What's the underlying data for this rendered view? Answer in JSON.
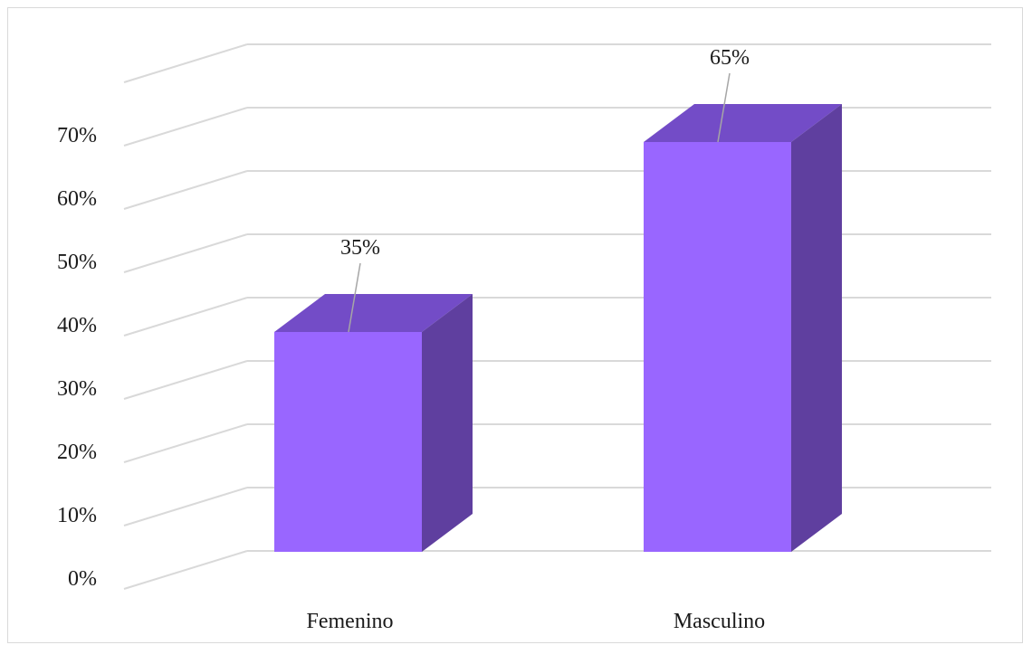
{
  "chart_data": {
    "type": "bar",
    "three_d": true,
    "categories": [
      "Femenino",
      "Masculino"
    ],
    "values": [
      35,
      65
    ],
    "data_labels": [
      "35%",
      "65%"
    ],
    "yticks": [
      0,
      10,
      20,
      30,
      40,
      50,
      60,
      70
    ],
    "ytick_labels": [
      "0%",
      "10%",
      "20%",
      "30%",
      "40%",
      "50%",
      "60%",
      "70%"
    ],
    "ylim": [
      0,
      70
    ],
    "grid": true,
    "legend": "none",
    "title": "",
    "xlabel": "",
    "ylabel": "",
    "colors": {
      "bar_front": "#9966ff",
      "bar_top": "#734cc7",
      "bar_side": "#5f3f9f",
      "grid": "#d9d9d9",
      "leader_line": "#a6a6a6",
      "text": "#1a1a1a"
    }
  }
}
